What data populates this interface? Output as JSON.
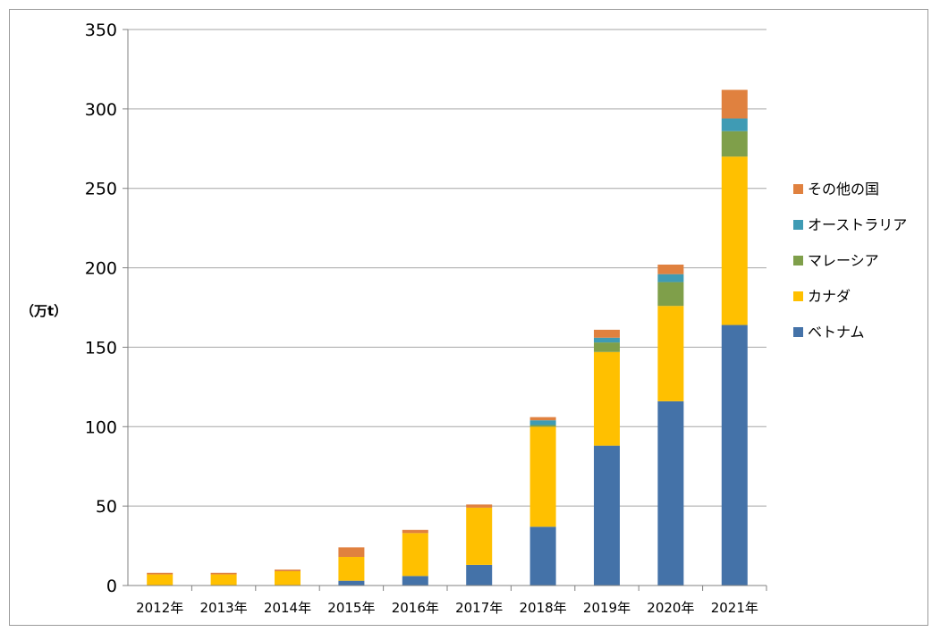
{
  "chart_data": {
    "type": "bar",
    "stacked": true,
    "title": "",
    "xlabel": "",
    "ylabel": "（万t）",
    "ylim": [
      0,
      350
    ],
    "yticks": [
      0,
      50,
      100,
      150,
      200,
      250,
      300,
      350
    ],
    "grid": true,
    "legend_position": "right",
    "categories": [
      "2012年",
      "2013年",
      "2014年",
      "2015年",
      "2016年",
      "2017年",
      "2018年",
      "2019年",
      "2020年",
      "2021年"
    ],
    "series": [
      {
        "name": "ベトナム",
        "color": "#4472a8",
        "values": [
          0,
          0,
          0,
          3,
          6,
          13,
          37,
          88,
          116,
          164
        ]
      },
      {
        "name": "カナダ",
        "color": "#ffc000",
        "values": [
          7,
          7,
          9,
          15,
          27,
          36,
          63,
          59,
          60,
          106
        ]
      },
      {
        "name": "マレーシア",
        "color": "#7f9f4a",
        "values": [
          0,
          0,
          0,
          0,
          0,
          0,
          1,
          6,
          15,
          16
        ]
      },
      {
        "name": "オーストラリア",
        "color": "#3f9bb4",
        "values": [
          0,
          0,
          0,
          0,
          0,
          0,
          3,
          3,
          5,
          8
        ]
      },
      {
        "name": "その他の国",
        "color": "#e0813f",
        "values": [
          1,
          1,
          1,
          6,
          2,
          2,
          2,
          5,
          6,
          18
        ]
      }
    ],
    "legend_order": [
      "その他の国",
      "オーストラリア",
      "マレーシア",
      "カナダ",
      "ベトナム"
    ]
  }
}
